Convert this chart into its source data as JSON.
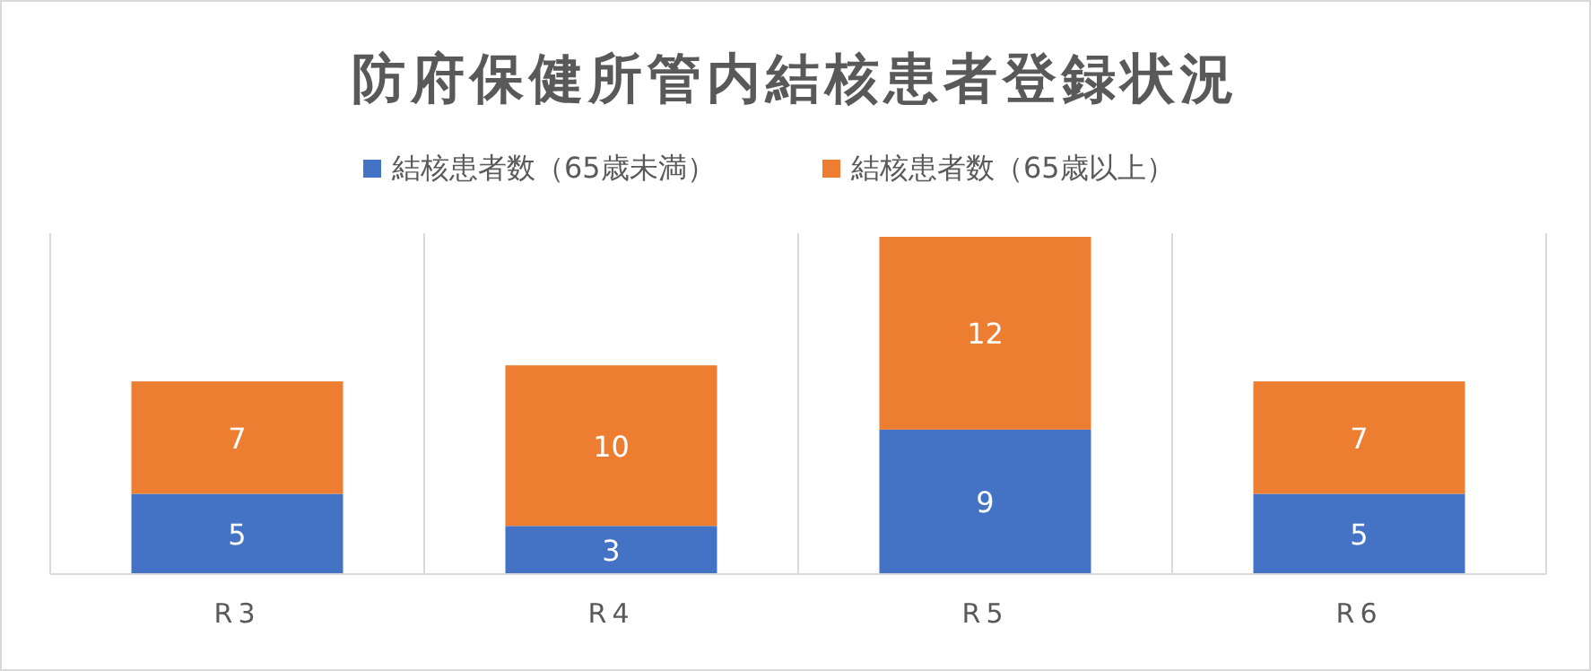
{
  "chart_data": {
    "type": "bar",
    "title": "防府保健所管内結核患者登録状況",
    "categories": [
      "R3",
      "R4",
      "R5",
      "R6"
    ],
    "stacked": true,
    "data_labels": true,
    "grid": "x",
    "legend": "top",
    "tick_labels": "x",
    "series": [
      {
        "name": "結核患者数（65歳未満）",
        "color": "#4472c4",
        "values": [
          5,
          3,
          9,
          5
        ]
      },
      {
        "name": "結核患者数（65歳以上）",
        "color": "#ed7d31",
        "values": [
          7,
          10,
          12,
          7
        ]
      }
    ]
  }
}
